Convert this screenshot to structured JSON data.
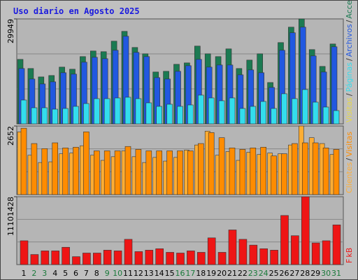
{
  "chart_data": [
    {
      "type": "bar",
      "title": "Uso diario en Agosto 2025",
      "categories": [
        "1",
        "2",
        "3",
        "4",
        "5",
        "6",
        "7",
        "8",
        "9",
        "10",
        "11",
        "12",
        "13",
        "14",
        "15",
        "16",
        "17",
        "18",
        "19",
        "20",
        "21",
        "22",
        "23",
        "24",
        "25",
        "26",
        "27",
        "28",
        "29",
        "30",
        "31"
      ],
      "ylim": [
        0,
        29949
      ],
      "yticks": [
        29949
      ],
      "series": [
        {
          "name": "Accesos",
          "color": "#1b7a52",
          "values": [
            18400,
            15800,
            13400,
            13800,
            16200,
            15600,
            19200,
            20800,
            20600,
            23600,
            26400,
            21800,
            20000,
            14800,
            15000,
            17000,
            17400,
            22200,
            20000,
            19200,
            21400,
            15800,
            18200,
            20000,
            11800,
            23200,
            27600,
            29949,
            21200,
            16400,
            22800
          ]
        },
        {
          "name": "Archivos",
          "color": "#2158e0",
          "values": [
            15800,
            12800,
            11400,
            12000,
            14600,
            14200,
            17600,
            19000,
            18600,
            21000,
            25000,
            20400,
            19200,
            13200,
            12800,
            15000,
            16600,
            18400,
            16200,
            16800,
            16800,
            14000,
            15400,
            14600,
            10400,
            21000,
            26000,
            27600,
            19400,
            14800,
            22000
          ]
        },
        {
          "name": "Páginas",
          "color": "#33dded",
          "values": [
            6800,
            4600,
            4600,
            4200,
            4400,
            5000,
            5800,
            7200,
            7200,
            7400,
            7600,
            7200,
            6000,
            5000,
            5600,
            5000,
            5400,
            8200,
            7400,
            6600,
            7400,
            4400,
            5000,
            6400,
            4400,
            8600,
            7200,
            9800,
            6200,
            4800,
            3800
          ]
        }
      ],
      "legend_separator": "/",
      "legend_extra": {
        "text": "Visitas",
        "color": "#e6d84a"
      }
    },
    {
      "type": "bar",
      "ylim": [
        0,
        2652
      ],
      "yticks": [
        2652
      ],
      "series": [
        {
          "name": "Clientes",
          "color": "#ffad33",
          "values": [
            2425,
            1523,
            1241,
            1269,
            1579,
            1607,
            1889,
            1523,
            1325,
            1466,
            1692,
            1466,
            1241,
            1438,
            1297,
            1438,
            1720,
            1918,
            2453,
            1523,
            1664,
            1325,
            1636,
            1551,
            1607,
            1579,
            1918,
            2652,
            2200,
            1974,
            1551
          ]
        },
        {
          "name": "Visitas",
          "color": "#ff8c00",
          "values": [
            2566,
            1974,
            1777,
            2002,
            1805,
            1833,
            2425,
            1692,
            1692,
            1692,
            1861,
            1748,
            1692,
            1692,
            1692,
            1692,
            1692,
            1974,
            2397,
            2200,
            1805,
            1748,
            1805,
            1833,
            1495,
            1579,
            1974,
            2002,
            2002,
            1805,
            1748
          ]
        }
      ],
      "legend_separator": "/"
    },
    {
      "type": "bar",
      "ylim": [
        0,
        11101428
      ],
      "yticks": [
        11101428
      ],
      "series": [
        {
          "name": "kB",
          "color": "#ee1515",
          "values": [
            3897000,
            1653000,
            2244000,
            2244000,
            2834000,
            1299000,
            1890000,
            1890000,
            2362000,
            2244000,
            4133000,
            2126000,
            2362000,
            2598000,
            2008000,
            1890000,
            2244000,
            2008000,
            4370000,
            2008000,
            5669000,
            4133000,
            3189000,
            2598000,
            2362000,
            8031000,
            4724000,
            11101428,
            3543000,
            3897000,
            6496000
          ]
        }
      ],
      "legend_extra": {
        "text": "F",
        "color": "#ee1515"
      },
      "category_colors": [
        "#000",
        "#1a7a3a",
        "#1a7a3a",
        "#000",
        "#000",
        "#000",
        "#000",
        "#000",
        "#1a7a3a",
        "#1a7a3a",
        "#000",
        "#000",
        "#000",
        "#000",
        "#000",
        "#1a7a3a",
        "#1a7a3a",
        "#000",
        "#000",
        "#000",
        "#000",
        "#000",
        "#1a7a3a",
        "#1a7a3a",
        "#000",
        "#000",
        "#000",
        "#000",
        "#000",
        "#1a7a3a",
        "#1a7a3a"
      ]
    }
  ]
}
